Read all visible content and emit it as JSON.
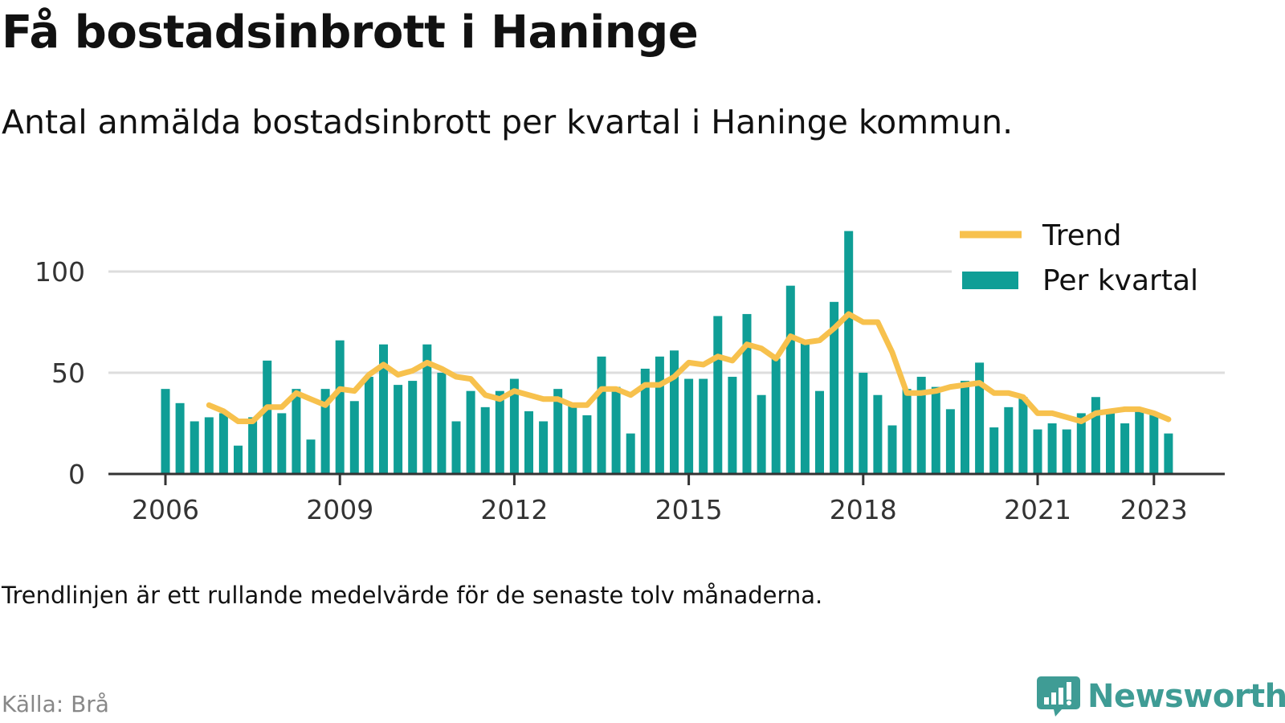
{
  "header": {
    "title": "Få bostadsinbrott i Haninge",
    "subtitle": "Antal anmälda bostadsinbrott per kvartal i Haninge kommun."
  },
  "footer": {
    "note": "Trendlinjen är ett rullande medelvärde för de senaste tolv månaderna.",
    "source": "Källa: Brå",
    "brand": "Newsworthy",
    "brand_icon": "bar-chart-chat-icon",
    "brand_color": "#3f9c95"
  },
  "chart_data": {
    "type": "bar",
    "title": "",
    "xlabel": "",
    "ylabel": "",
    "start_year": 2006,
    "x_ticks": [
      "2006",
      "2009",
      "2012",
      "2015",
      "2018",
      "2021",
      "2023"
    ],
    "y_ticks": [
      0,
      50,
      100
    ],
    "ylim": [
      0,
      120
    ],
    "grid": true,
    "legend_position": "top-right",
    "colors": {
      "bars": "#0f9e96",
      "trend": "#f7c14d",
      "grid": "#dddddd"
    },
    "series": [
      {
        "name": "Per kvartal",
        "type": "bar",
        "values": [
          42,
          35,
          26,
          28,
          30,
          14,
          28,
          56,
          30,
          42,
          17,
          42,
          66,
          36,
          48,
          64,
          44,
          46,
          64,
          50,
          26,
          41,
          33,
          41,
          47,
          31,
          26,
          42,
          34,
          29,
          58,
          43,
          20,
          52,
          58,
          61,
          47,
          47,
          78,
          48,
          79,
          39,
          57,
          93,
          65,
          41,
          85,
          120,
          50,
          39,
          24,
          42,
          48,
          43,
          32,
          46,
          55,
          23,
          33,
          38,
          22,
          25,
          22,
          30,
          38,
          31,
          25,
          31,
          30,
          20
        ]
      },
      {
        "name": "Trend",
        "type": "line",
        "values": [
          null,
          null,
          null,
          34,
          31,
          26,
          26,
          33,
          33,
          40,
          37,
          34,
          42,
          41,
          49,
          54,
          49,
          51,
          55,
          52,
          48,
          47,
          39,
          37,
          41,
          39,
          37,
          37,
          34,
          34,
          42,
          42,
          39,
          44,
          44,
          48,
          55,
          54,
          58,
          56,
          64,
          62,
          57,
          68,
          65,
          66,
          72,
          79,
          75,
          75,
          60,
          40,
          40,
          41,
          43,
          44,
          45,
          40,
          40,
          38,
          30,
          30,
          28,
          26,
          30,
          31,
          32,
          32,
          30,
          27
        ]
      }
    ]
  }
}
